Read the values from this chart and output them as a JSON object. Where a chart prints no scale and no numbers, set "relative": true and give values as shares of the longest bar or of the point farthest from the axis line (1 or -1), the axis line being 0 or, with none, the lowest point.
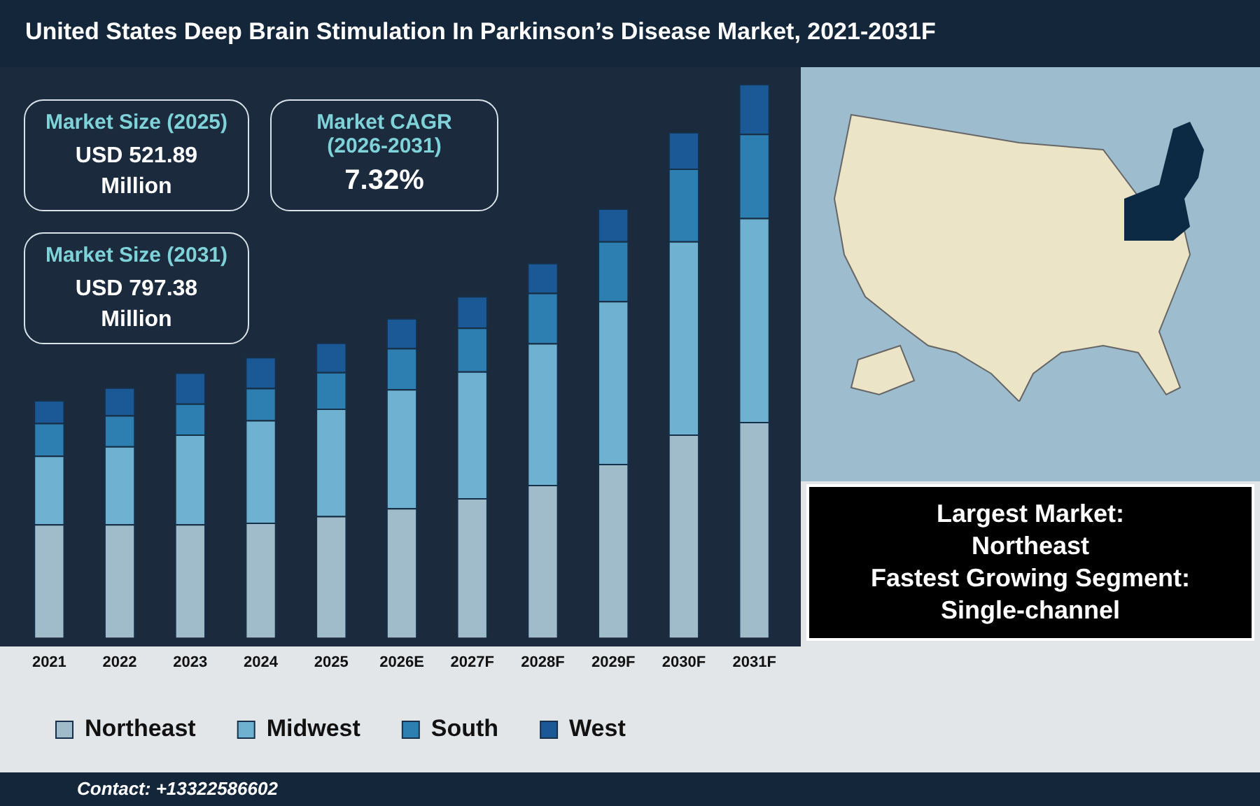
{
  "chart_data": {
    "type": "bar",
    "title": "United States Deep Brain Stimulation In Parkinson’s Disease Market, 2021-2031F",
    "categories": [
      "2021",
      "2022",
      "2023",
      "2024",
      "2025",
      "2026E",
      "2027F",
      "2028F",
      "2029F",
      "2030F",
      "2031F"
    ],
    "stacked": true,
    "relative": true,
    "legend": "bottom",
    "grid": false,
    "series": [
      {
        "name": "Northeast",
        "color": "#a0bccb",
        "values": [
          0.205,
          0.205,
          0.205,
          0.208,
          0.22,
          0.234,
          0.252,
          0.276,
          0.314,
          0.367,
          0.39
        ]
      },
      {
        "name": "Midwest",
        "color": "#6fb1d0",
        "values": [
          0.124,
          0.141,
          0.162,
          0.185,
          0.194,
          0.215,
          0.229,
          0.256,
          0.294,
          0.349,
          0.368
        ]
      },
      {
        "name": "South",
        "color": "#2e7fb1",
        "values": [
          0.059,
          0.056,
          0.056,
          0.058,
          0.066,
          0.074,
          0.079,
          0.091,
          0.108,
          0.131,
          0.152
        ]
      },
      {
        "name": "West",
        "color": "#1a5896",
        "values": [
          0.041,
          0.05,
          0.056,
          0.056,
          0.053,
          0.054,
          0.057,
          0.054,
          0.059,
          0.066,
          0.09
        ]
      }
    ],
    "annotations": [
      "Market Size (2025)",
      "USD 521.89 Million",
      "Market CAGR (2026-2031)",
      "7.32%",
      "Market Size (2031)",
      "USD 797.38 Million",
      "Largest Market:",
      "Northeast",
      "Fastest Growing Segment:",
      "Single-channel",
      "Contact: +13322586602"
    ]
  }
}
